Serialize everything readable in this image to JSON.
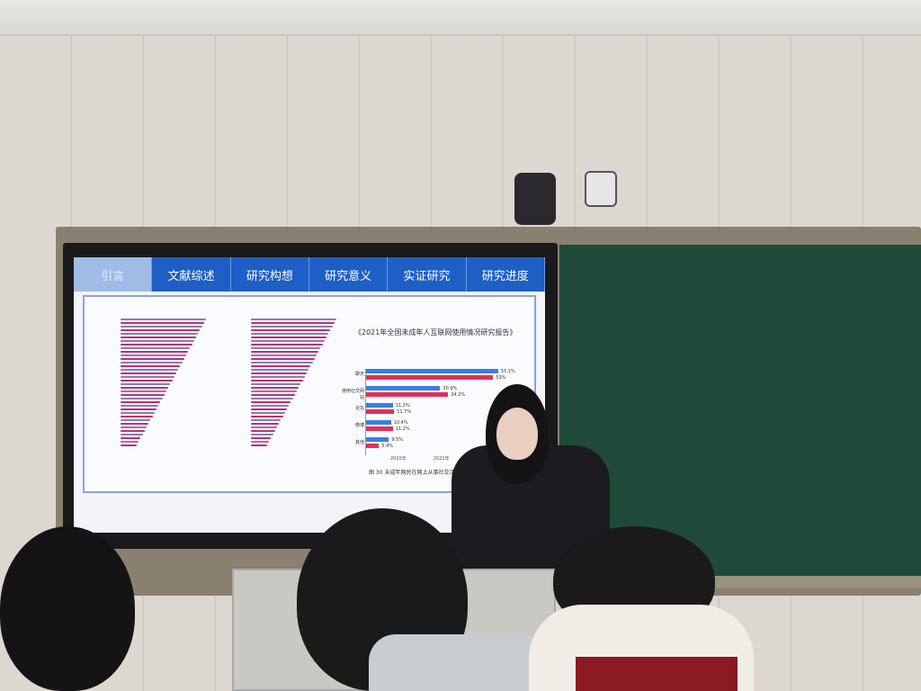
{
  "slide": {
    "tabs": [
      {
        "label": "引言",
        "active": true
      },
      {
        "label": "文献综述"
      },
      {
        "label": "研究构想"
      },
      {
        "label": "研究意义"
      },
      {
        "label": "实证研究"
      },
      {
        "label": "研究进度"
      }
    ],
    "report_title": "《2021年全国未成年人互联网使用情况研究报告》",
    "caption": "图 30 未成年网民在网上从事社交活动的",
    "colors": {
      "tab_blue": "#1d5fc4",
      "series_2020": "#3a7ee0",
      "series_2021": "#e0305a"
    }
  },
  "chart_data": {
    "type": "bar",
    "orientation": "horizontal",
    "categories": [
      "聊天",
      "使用社交网站",
      "论坛",
      "微博",
      "其他"
    ],
    "series": [
      {
        "name": "2020年",
        "values": [
          55.1,
          30.9,
          11.2,
          10.4,
          9.5
        ]
      },
      {
        "name": "2021年",
        "values": [
          53.0,
          34.2,
          11.7,
          11.2,
          5.4
        ]
      }
    ],
    "xlim": [
      0,
      60
    ],
    "legend": "bottom"
  }
}
